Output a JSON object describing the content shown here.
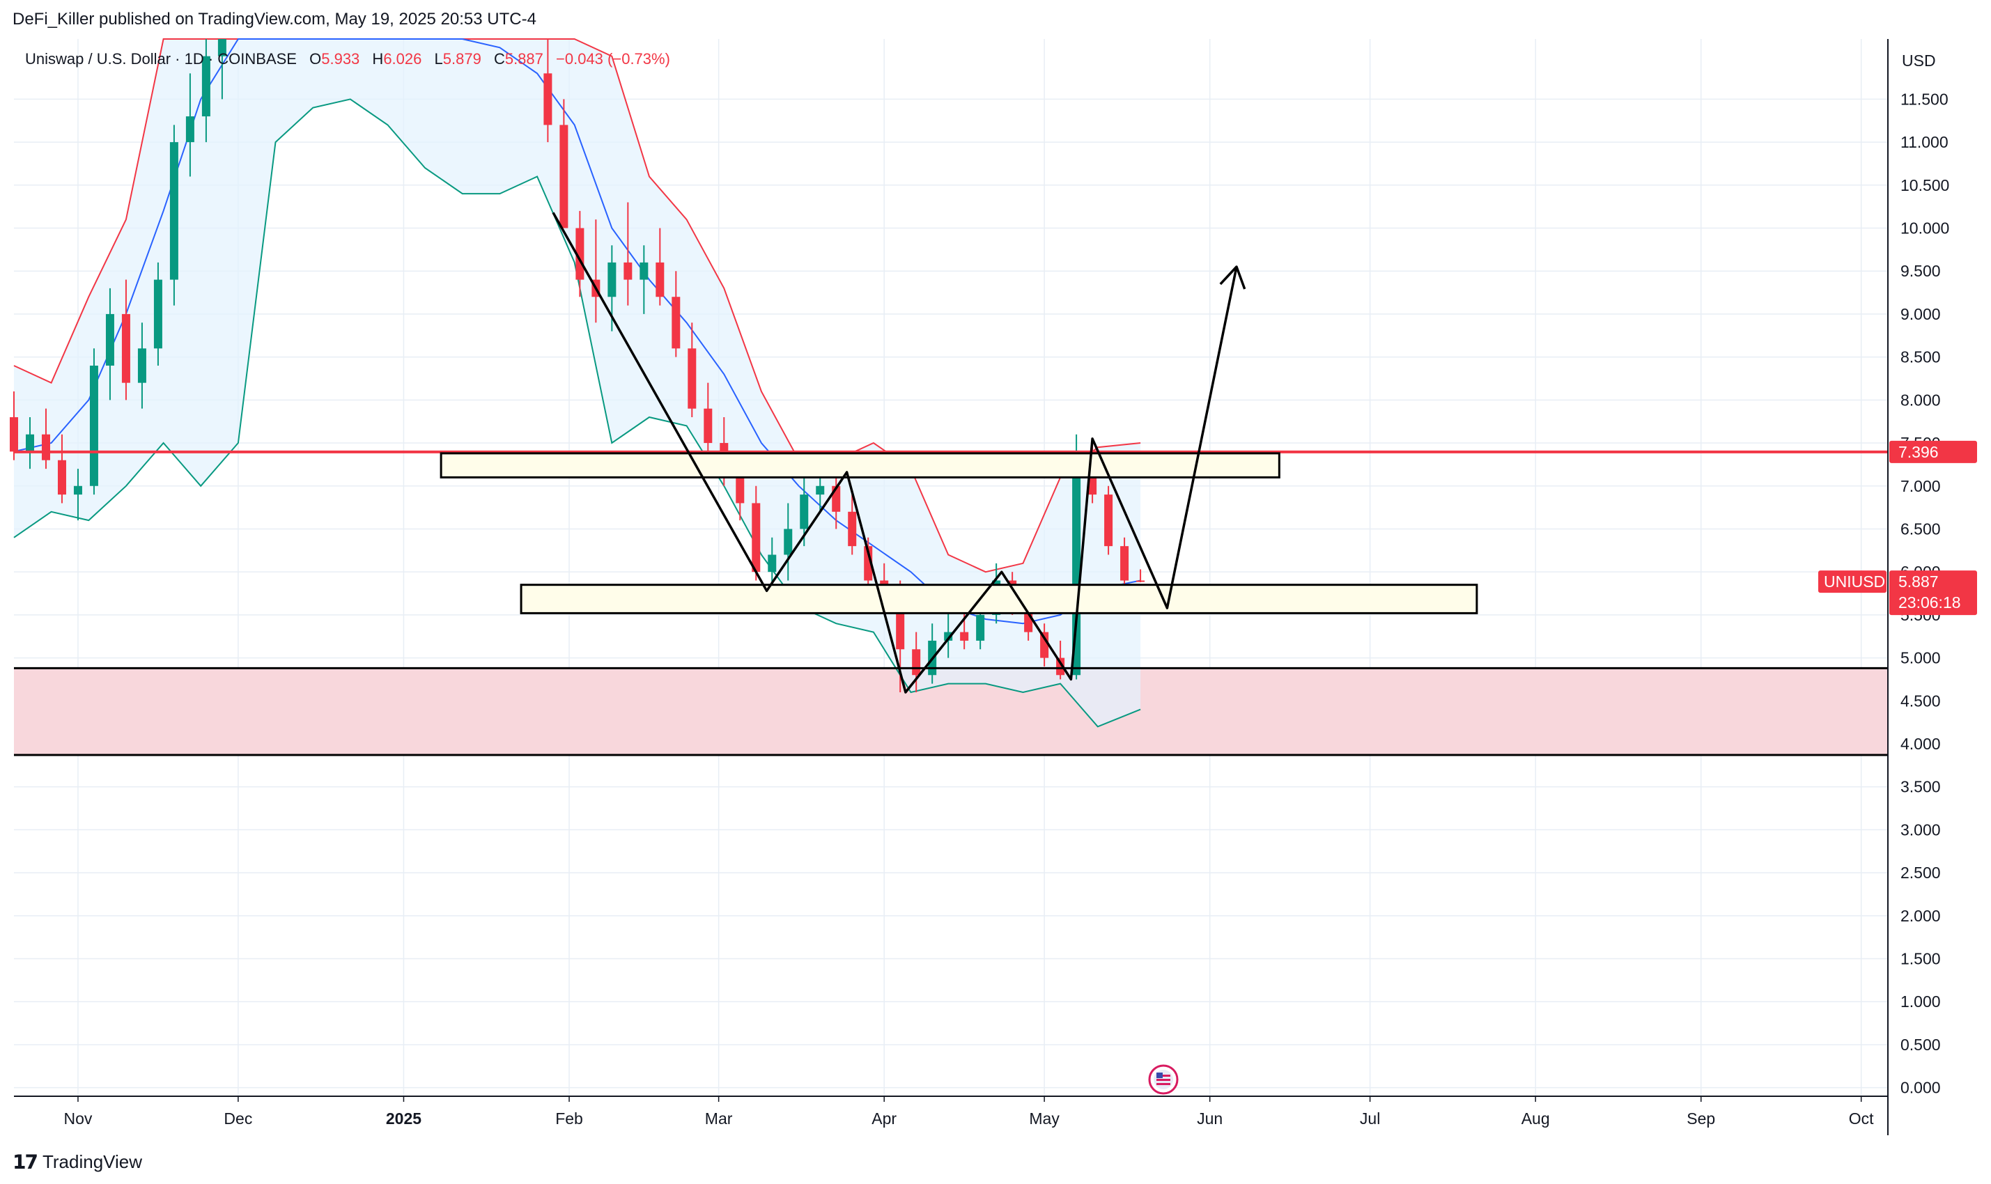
{
  "header": {
    "text": "DeFi_Killer published on TradingView.com, May 19, 2025 20:53 UTC-4"
  },
  "footer": {
    "brand": "TradingView",
    "logo_icon": "tradingview-logo-icon"
  },
  "legend": {
    "symbol": "Uniswap / U.S. Dollar · 1D · COINBASE",
    "open_label": "O",
    "open": "5.933",
    "high_label": "H",
    "high": "6.026",
    "low_label": "L",
    "low": "5.879",
    "close_label": "C",
    "close": "5.887",
    "change": "−0.043 (−0.73%)"
  },
  "colors": {
    "up": "#089981",
    "down": "#f23645",
    "upper_band": "#f23645",
    "basis": "#2962ff",
    "lower_band": "#089981",
    "band_fill": "#e3f2fd",
    "support_zone": "#f8d7dc",
    "level_line": "#f23645",
    "box_fill": "#fffdea"
  },
  "chart_data": {
    "type": "candlestick",
    "symbol": "UNIUSD",
    "currency": "USD",
    "y_axis": {
      "unit": "USD",
      "ticks": [
        "0.000",
        "0.500",
        "1.000",
        "1.500",
        "2.000",
        "2.500",
        "3.000",
        "3.500",
        "4.000",
        "4.500",
        "5.000",
        "5.500",
        "6.000",
        "6.500",
        "7.000",
        "7.500",
        "8.000",
        "8.500",
        "9.000",
        "9.500",
        "10.000",
        "10.500",
        "11.000",
        "11.500"
      ],
      "range": [
        -0.1,
        12.2
      ]
    },
    "x_axis": {
      "range": [
        "2024-10-20",
        "2025-10-06"
      ],
      "ticks": [
        {
          "label": "Nov",
          "date": "2024-11-01"
        },
        {
          "label": "Dec",
          "date": "2024-12-01"
        },
        {
          "label": "2025",
          "date": "2025-01-01"
        },
        {
          "label": "Feb",
          "date": "2025-02-01"
        },
        {
          "label": "Mar",
          "date": "2025-03-01"
        },
        {
          "label": "Apr",
          "date": "2025-04-01"
        },
        {
          "label": "May",
          "date": "2025-05-01"
        },
        {
          "label": "Jun",
          "date": "2025-06-01"
        },
        {
          "label": "Jul",
          "date": "2025-07-01"
        },
        {
          "label": "Aug",
          "date": "2025-08-01"
        },
        {
          "label": "Sep",
          "date": "2025-09-01"
        },
        {
          "label": "Oct",
          "date": "2025-10-01"
        }
      ]
    },
    "price_labels": [
      {
        "value": 7.396,
        "text": "7.396",
        "color": "#f23645"
      },
      {
        "value": 5.887,
        "text": "5.887",
        "symbol": "UNIUSD",
        "countdown": "23:06:18",
        "color": "#f23645"
      }
    ],
    "horizontal_lines": [
      {
        "value": 7.396,
        "color": "#f23645"
      },
      {
        "value": 4.88,
        "color": "#000000"
      },
      {
        "value": 3.87,
        "color": "#000000"
      }
    ],
    "zones": [
      {
        "from": 3.87,
        "to": 4.88,
        "color": "#f8d7dc"
      }
    ],
    "boxes": [
      {
        "start": "2025-01-08",
        "end": "2025-06-14",
        "top": 7.38,
        "bottom": 7.1
      },
      {
        "start": "2025-01-23",
        "end": "2025-07-21",
        "top": 5.85,
        "bottom": 5.52
      }
    ],
    "pattern_path": [
      {
        "date": "2025-01-29",
        "value": 10.18
      },
      {
        "date": "2025-03-10",
        "value": 5.78
      },
      {
        "date": "2025-03-25",
        "value": 7.16
      },
      {
        "date": "2025-04-05",
        "value": 4.6
      },
      {
        "date": "2025-04-23",
        "value": 6.0
      },
      {
        "date": "2025-05-06",
        "value": 4.75
      },
      {
        "date": "2025-05-10",
        "value": 7.55
      },
      {
        "date": "2025-05-24",
        "value": 5.58
      },
      {
        "date": "2025-06-06",
        "value": 9.55
      }
    ],
    "bollinger": {
      "dates": [
        "2024-10-20",
        "2024-10-27",
        "2024-11-03",
        "2024-11-10",
        "2024-11-17",
        "2024-11-24",
        "2024-12-01",
        "2024-12-08",
        "2024-12-15",
        "2024-12-22",
        "2024-12-29",
        "2025-01-05",
        "2025-01-12",
        "2025-01-19",
        "2025-01-26",
        "2025-02-02",
        "2025-02-09",
        "2025-02-16",
        "2025-02-23",
        "2025-03-02",
        "2025-03-09",
        "2025-03-16",
        "2025-03-23",
        "2025-03-30",
        "2025-04-06",
        "2025-04-13",
        "2025-04-20",
        "2025-04-27",
        "2025-05-04",
        "2025-05-11",
        "2025-05-19"
      ],
      "upper": [
        8.4,
        8.2,
        9.2,
        10.1,
        12.2,
        13.5,
        14.5,
        15.3,
        15.6,
        15.4,
        15.0,
        14.6,
        14.2,
        13.7,
        13.4,
        12.9,
        12.0,
        10.6,
        10.1,
        9.3,
        8.1,
        7.3,
        7.3,
        7.5,
        7.2,
        6.2,
        6.0,
        6.1,
        7.1,
        7.45,
        7.5
      ],
      "basis": [
        7.4,
        7.5,
        8.0,
        9.0,
        10.2,
        11.5,
        12.5,
        13.2,
        13.5,
        13.4,
        13.1,
        12.6,
        12.3,
        12.1,
        11.8,
        11.2,
        10.0,
        9.4,
        8.9,
        8.3,
        7.5,
        7.0,
        6.6,
        6.3,
        6.0,
        5.6,
        5.45,
        5.4,
        5.5,
        5.8,
        5.9
      ],
      "lower": [
        6.4,
        6.7,
        6.6,
        7.0,
        7.5,
        7.0,
        7.5,
        11.0,
        11.4,
        11.5,
        11.2,
        10.7,
        10.4,
        10.4,
        10.6,
        9.6,
        7.5,
        7.8,
        7.7,
        7.0,
        6.2,
        5.6,
        5.4,
        5.3,
        4.6,
        4.7,
        4.7,
        4.6,
        4.7,
        4.2,
        4.4
      ]
    },
    "candles": {
      "dates": [
        "2024-10-20",
        "2024-10-23",
        "2024-10-26",
        "2024-10-29",
        "2024-11-01",
        "2024-11-04",
        "2024-11-07",
        "2024-11-10",
        "2024-11-13",
        "2024-11-16",
        "2024-11-19",
        "2024-11-22",
        "2024-11-25",
        "2024-11-28",
        "2025-01-28",
        "2025-01-31",
        "2025-02-03",
        "2025-02-06",
        "2025-02-09",
        "2025-02-12",
        "2025-02-15",
        "2025-02-18",
        "2025-02-21",
        "2025-02-24",
        "2025-02-27",
        "2025-03-02",
        "2025-03-05",
        "2025-03-08",
        "2025-03-11",
        "2025-03-14",
        "2025-03-17",
        "2025-03-20",
        "2025-03-23",
        "2025-03-26",
        "2025-03-29",
        "2025-04-01",
        "2025-04-04",
        "2025-04-07",
        "2025-04-10",
        "2025-04-13",
        "2025-04-16",
        "2025-04-19",
        "2025-04-22",
        "2025-04-25",
        "2025-04-28",
        "2025-05-01",
        "2025-05-04",
        "2025-05-07",
        "2025-05-10",
        "2025-05-13",
        "2025-05-16",
        "2025-05-19"
      ],
      "open": [
        7.8,
        7.4,
        7.6,
        7.3,
        6.9,
        7.0,
        8.4,
        9.0,
        8.2,
        8.6,
        9.4,
        11.0,
        11.3,
        12.0,
        11.8,
        11.2,
        10.0,
        9.4,
        9.2,
        9.6,
        9.4,
        9.6,
        9.2,
        8.6,
        7.9,
        7.5,
        7.2,
        6.8,
        6.0,
        6.2,
        6.5,
        6.9,
        7.0,
        6.7,
        6.3,
        5.9,
        5.7,
        5.1,
        4.8,
        5.2,
        5.3,
        5.2,
        5.5,
        5.9,
        5.6,
        5.3,
        5.0,
        4.8,
        7.2,
        6.9,
        6.3,
        5.9
      ],
      "high": [
        8.1,
        7.8,
        7.9,
        7.6,
        7.2,
        8.6,
        9.3,
        9.4,
        8.9,
        9.6,
        11.2,
        11.8,
        12.3,
        12.5,
        12.2,
        11.5,
        10.2,
        10.1,
        9.8,
        10.3,
        9.8,
        10.0,
        9.5,
        8.9,
        8.2,
        7.8,
        7.4,
        7.0,
        6.4,
        6.8,
        7.2,
        7.2,
        7.3,
        6.9,
        6.4,
        6.1,
        5.9,
        5.3,
        5.4,
        5.6,
        5.6,
        5.7,
        6.1,
        6.0,
        5.8,
        5.4,
        5.2,
        7.6,
        7.55,
        7.0,
        6.4,
        6.03
      ],
      "low": [
        7.3,
        7.2,
        7.2,
        6.8,
        6.6,
        6.9,
        8.0,
        8.0,
        7.9,
        8.4,
        9.1,
        10.6,
        11.0,
        11.5,
        11.0,
        10.0,
        9.2,
        8.9,
        8.8,
        9.1,
        9.0,
        9.1,
        8.5,
        7.8,
        7.3,
        7.0,
        6.6,
        5.9,
        5.7,
        5.9,
        6.3,
        6.7,
        6.5,
        6.2,
        5.8,
        5.6,
        4.6,
        4.6,
        4.7,
        5.0,
        5.1,
        5.1,
        5.4,
        5.5,
        5.2,
        4.9,
        4.75,
        4.75,
        6.8,
        6.2,
        5.8,
        5.88
      ],
      "close": [
        7.4,
        7.6,
        7.3,
        6.9,
        7.0,
        8.4,
        9.0,
        8.2,
        8.6,
        9.4,
        11.0,
        11.3,
        12.0,
        12.2,
        11.2,
        10.0,
        9.4,
        9.2,
        9.6,
        9.4,
        9.6,
        9.2,
        8.6,
        7.9,
        7.5,
        7.2,
        6.8,
        6.0,
        6.2,
        6.5,
        6.9,
        7.0,
        6.7,
        6.3,
        5.9,
        5.7,
        5.1,
        4.8,
        5.2,
        5.3,
        5.2,
        5.5,
        5.9,
        5.6,
        5.3,
        5.0,
        4.8,
        7.2,
        6.9,
        6.3,
        5.9,
        5.887
      ]
    }
  }
}
